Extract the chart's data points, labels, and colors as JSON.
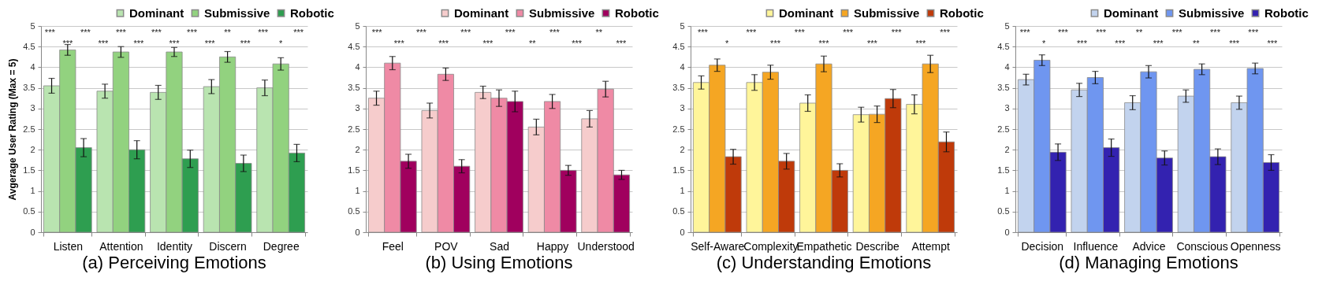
{
  "chart_data": [
    {
      "type": "bar",
      "title": "(a) Perceiving Emotions",
      "ylabel": "Avgerage User Rating (Max = 5)",
      "categories": [
        "Listen",
        "Attention",
        "Identity",
        "Discern",
        "Degree"
      ],
      "ylim": [
        0,
        5
      ],
      "yticks": [
        0,
        0.5,
        1,
        1.5,
        2,
        2.5,
        3,
        3.5,
        4,
        4.5,
        5
      ],
      "grid": "y",
      "legend": "top right",
      "series": [
        {
          "name": "Dominant",
          "color": "#b9e4b0",
          "values": [
            3.55,
            3.42,
            3.39,
            3.53,
            3.5
          ],
          "errors": [
            0.18,
            0.17,
            0.17,
            0.17,
            0.19
          ]
        },
        {
          "name": "Submissive",
          "color": "#92d27f",
          "values": [
            4.42,
            4.37,
            4.37,
            4.25,
            4.08
          ],
          "errors": [
            0.13,
            0.13,
            0.11,
            0.13,
            0.15
          ]
        },
        {
          "name": "Robotic",
          "color": "#2e9e50",
          "values": [
            2.05,
            2.0,
            1.78,
            1.67,
            1.92
          ],
          "errors": [
            0.22,
            0.22,
            0.21,
            0.2,
            0.21
          ]
        }
      ],
      "annotations": [
        "***",
        "***",
        "***",
        "***",
        "***",
        "***",
        "***",
        "***",
        "***",
        "***",
        "**",
        "***",
        "***",
        "*",
        "***"
      ]
    },
    {
      "type": "bar",
      "title": "(b) Using Emotions",
      "categories": [
        "Feel",
        "POV",
        "Sad",
        "Happy",
        "Understood"
      ],
      "ylim": [
        0,
        5
      ],
      "yticks": [
        0,
        0.5,
        1,
        1.5,
        2,
        2.5,
        3,
        3.5,
        4,
        4.5,
        5
      ],
      "grid": "y",
      "legend": "top right",
      "series": [
        {
          "name": "Dominant",
          "color": "#f6cccc",
          "values": [
            3.25,
            2.95,
            3.39,
            2.55,
            2.75
          ],
          "errors": [
            0.17,
            0.18,
            0.15,
            0.19,
            0.2
          ]
        },
        {
          "name": "Submissive",
          "color": "#ef8aa5",
          "values": [
            4.1,
            3.83,
            3.25,
            3.17,
            3.47
          ],
          "errors": [
            0.16,
            0.15,
            0.2,
            0.17,
            0.19
          ]
        },
        {
          "name": "Robotic",
          "color": "#a0005e",
          "values": [
            1.72,
            1.6,
            3.17,
            1.5,
            1.39
          ],
          "errors": [
            0.17,
            0.16,
            0.25,
            0.12,
            0.11
          ]
        }
      ],
      "annotations": [
        "***",
        "***",
        "***",
        "***",
        "***",
        "***",
        "***",
        "**",
        "***",
        "***",
        "**",
        "***"
      ]
    },
    {
      "type": "bar",
      "title": "(c) Understanding Emotions",
      "categories": [
        "Self-Aware",
        "Complexity",
        "Empathetic",
        "Describe",
        "Attempt"
      ],
      "ylim": [
        0,
        5
      ],
      "yticks": [
        0,
        0.5,
        1,
        1.5,
        2,
        2.5,
        3,
        3.5,
        4,
        4.5,
        5
      ],
      "grid": "y",
      "legend": "top right",
      "series": [
        {
          "name": "Dominant",
          "color": "#fff59a",
          "values": [
            3.63,
            3.63,
            3.13,
            2.85,
            3.1
          ],
          "errors": [
            0.16,
            0.19,
            0.2,
            0.18,
            0.23
          ]
        },
        {
          "name": "Submissive",
          "color": "#f5a623",
          "values": [
            4.05,
            3.88,
            4.08,
            2.86,
            4.08
          ],
          "errors": [
            0.15,
            0.17,
            0.19,
            0.2,
            0.21
          ]
        },
        {
          "name": "Robotic",
          "color": "#bf3a0a",
          "values": [
            1.83,
            1.72,
            1.5,
            3.24,
            2.19
          ],
          "errors": [
            0.18,
            0.19,
            0.16,
            0.22,
            0.24
          ]
        }
      ],
      "annotations": [
        "***",
        "*",
        "***",
        "***",
        "***",
        "***",
        "***",
        "***",
        "***",
        "***",
        "***"
      ]
    },
    {
      "type": "bar",
      "title": "(d) Managing Emotions",
      "categories": [
        "Decision",
        "Influence",
        "Advice",
        "Conscious",
        "Openness"
      ],
      "ylim": [
        0,
        5
      ],
      "yticks": [
        0,
        0.5,
        1,
        1.5,
        2,
        2.5,
        3,
        3.5,
        4,
        4.5,
        5
      ],
      "grid": "y",
      "legend": "top right",
      "series": [
        {
          "name": "Dominant",
          "color": "#c2d3ee",
          "values": [
            3.7,
            3.45,
            3.14,
            3.3,
            3.14
          ],
          "errors": [
            0.13,
            0.16,
            0.17,
            0.15,
            0.16
          ]
        },
        {
          "name": "Submissive",
          "color": "#6f96f0",
          "values": [
            4.17,
            3.75,
            3.89,
            3.95,
            3.97
          ],
          "errors": [
            0.13,
            0.15,
            0.15,
            0.13,
            0.13
          ]
        },
        {
          "name": "Robotic",
          "color": "#3322b0",
          "values": [
            1.94,
            2.05,
            1.8,
            1.83,
            1.69
          ],
          "errors": [
            0.2,
            0.21,
            0.17,
            0.19,
            0.19
          ]
        }
      ],
      "annotations": [
        "***",
        "*",
        "***",
        "***",
        "***",
        "***",
        "**",
        "***",
        "***",
        "**",
        "***",
        "***",
        "***",
        "***"
      ]
    }
  ]
}
